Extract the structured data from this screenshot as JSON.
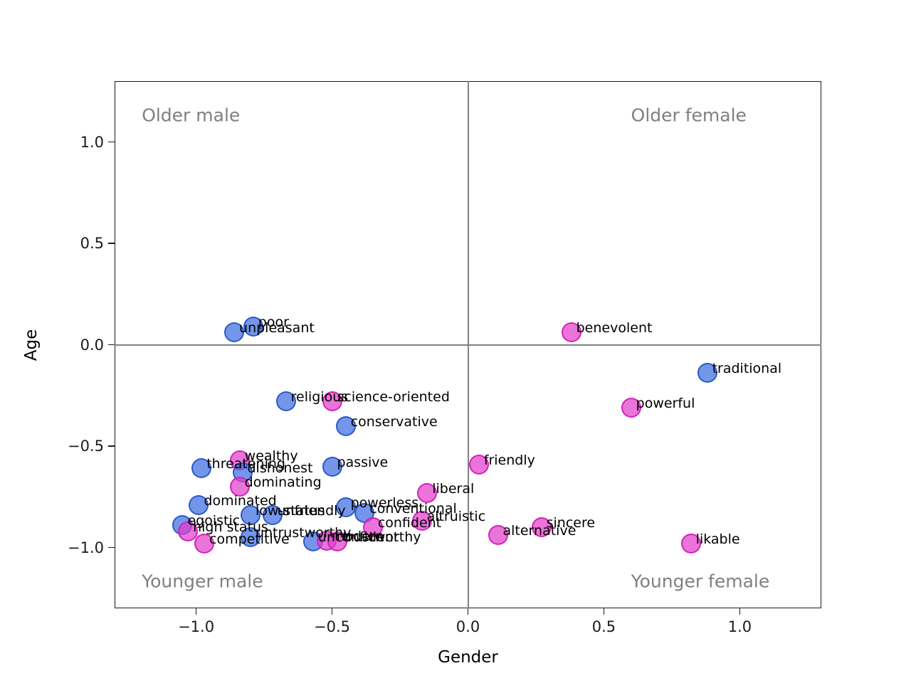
{
  "figure": {
    "xlabel": "Gender",
    "ylabel": "Age"
  },
  "chart_data": {
    "type": "scatter",
    "title": "",
    "xlabel": "Gender",
    "ylabel": "Age",
    "xlim": [
      -1.3,
      1.3
    ],
    "ylim": [
      -1.3,
      1.3
    ],
    "xticks": [
      -1.0,
      -0.5,
      0.0,
      0.5,
      1.0
    ],
    "yticks": [
      1.0,
      0.5,
      0.0,
      -0.5,
      -1.0
    ],
    "grid": false,
    "zero_lines": true,
    "legend": "none",
    "colors": {
      "blue_fill": "rgba(62,110,224,0.72)",
      "blue_edge": "rgba(40,86,200,0.95)",
      "magenta_fill": "rgba(226,62,203,0.72)",
      "magenta_edge": "rgba(212,30,186,0.95)",
      "zero_line": "#808080",
      "quadrant_text": "#808080"
    },
    "quadrants": [
      {
        "text": "Older male",
        "x": -1.2,
        "y": 1.13
      },
      {
        "text": "Older female",
        "x": 0.6,
        "y": 1.13
      },
      {
        "text": "Younger male",
        "x": -1.2,
        "y": -1.165
      },
      {
        "text": "Younger female",
        "x": 0.6,
        "y": -1.165
      }
    ],
    "points": [
      {
        "label": "unpleasant",
        "x": -0.86,
        "y": 0.06,
        "cluster": "blue"
      },
      {
        "label": "poor",
        "x": -0.79,
        "y": 0.09,
        "cluster": "blue"
      },
      {
        "label": "benevolent",
        "x": 0.38,
        "y": 0.06,
        "cluster": "magenta"
      },
      {
        "label": "traditional",
        "x": 0.88,
        "y": -0.14,
        "cluster": "blue"
      },
      {
        "label": "powerful",
        "x": 0.6,
        "y": -0.31,
        "cluster": "magenta"
      },
      {
        "label": "religious",
        "x": -0.67,
        "y": -0.28,
        "cluster": "blue"
      },
      {
        "label": "science-oriented",
        "x": -0.5,
        "y": -0.28,
        "cluster": "magenta"
      },
      {
        "label": "conservative",
        "x": -0.45,
        "y": -0.4,
        "cluster": "blue"
      },
      {
        "label": "wealthy",
        "x": -0.84,
        "y": -0.57,
        "cluster": "magenta"
      },
      {
        "label": "passive",
        "x": -0.5,
        "y": -0.6,
        "cluster": "blue"
      },
      {
        "label": "threatening",
        "x": -0.98,
        "y": -0.61,
        "cluster": "blue"
      },
      {
        "label": "dishonest",
        "x": -0.83,
        "y": -0.63,
        "cluster": "blue"
      },
      {
        "label": "dominating",
        "x": -0.84,
        "y": -0.7,
        "cluster": "magenta"
      },
      {
        "label": "friendly",
        "x": 0.04,
        "y": -0.59,
        "cluster": "magenta"
      },
      {
        "label": "dominated",
        "x": -0.99,
        "y": -0.79,
        "cluster": "blue"
      },
      {
        "label": "liberal",
        "x": -0.15,
        "y": -0.73,
        "cluster": "magenta"
      },
      {
        "label": "powerless",
        "x": -0.45,
        "y": -0.8,
        "cluster": "blue"
      },
      {
        "label": "conventional",
        "x": -0.38,
        "y": -0.83,
        "cluster": "blue"
      },
      {
        "label": "low-status",
        "x": -0.8,
        "y": -0.84,
        "cluster": "blue"
      },
      {
        "label": "unfriendly",
        "x": -0.72,
        "y": -0.84,
        "cluster": "blue"
      },
      {
        "label": "altruistic",
        "x": -0.17,
        "y": -0.87,
        "cluster": "magenta"
      },
      {
        "label": "egoistic",
        "x": -1.05,
        "y": -0.89,
        "cluster": "blue"
      },
      {
        "label": "high status",
        "x": -1.03,
        "y": -0.92,
        "cluster": "magenta"
      },
      {
        "label": "confident",
        "x": -0.35,
        "y": -0.9,
        "cluster": "magenta"
      },
      {
        "label": "sincere",
        "x": 0.27,
        "y": -0.9,
        "cluster": "magenta"
      },
      {
        "label": "alternative",
        "x": 0.11,
        "y": -0.94,
        "cluster": "magenta"
      },
      {
        "label": "likable",
        "x": 0.82,
        "y": -0.98,
        "cluster": "magenta"
      },
      {
        "label": "untrustworthy",
        "x": -0.8,
        "y": -0.95,
        "cluster": "blue"
      },
      {
        "label": "unconfident",
        "x": -0.57,
        "y": -0.97,
        "cluster": "blue"
      },
      {
        "label": "modern",
        "x": -0.52,
        "y": -0.965,
        "cluster": "magenta"
      },
      {
        "label": "trustworthy",
        "x": -0.48,
        "y": -0.97,
        "cluster": "magenta"
      },
      {
        "label": "competitive",
        "x": -0.97,
        "y": -0.98,
        "cluster": "magenta"
      }
    ]
  }
}
